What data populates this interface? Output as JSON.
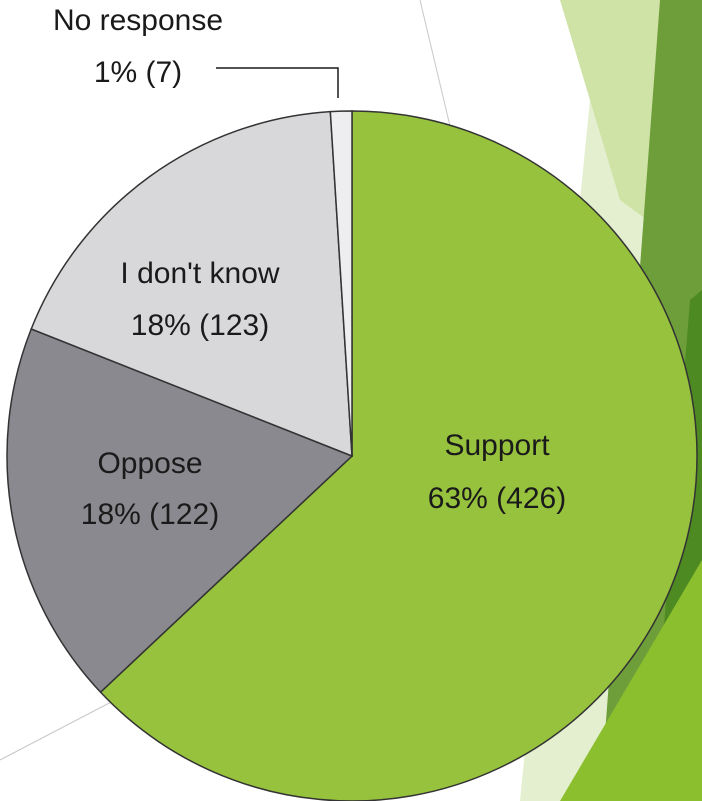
{
  "chart_data": {
    "type": "pie",
    "categories": [
      "Support",
      "Oppose",
      "I don't know",
      "No response"
    ],
    "values": [
      63,
      18,
      18,
      1
    ],
    "value_labels": [
      "63% (426)",
      "18% (122)",
      "18% (123)",
      "1% (7)"
    ],
    "colors": [
      "#97c23d",
      "#8a898f",
      "#d8d8da",
      "#eeeef1"
    ]
  }
}
